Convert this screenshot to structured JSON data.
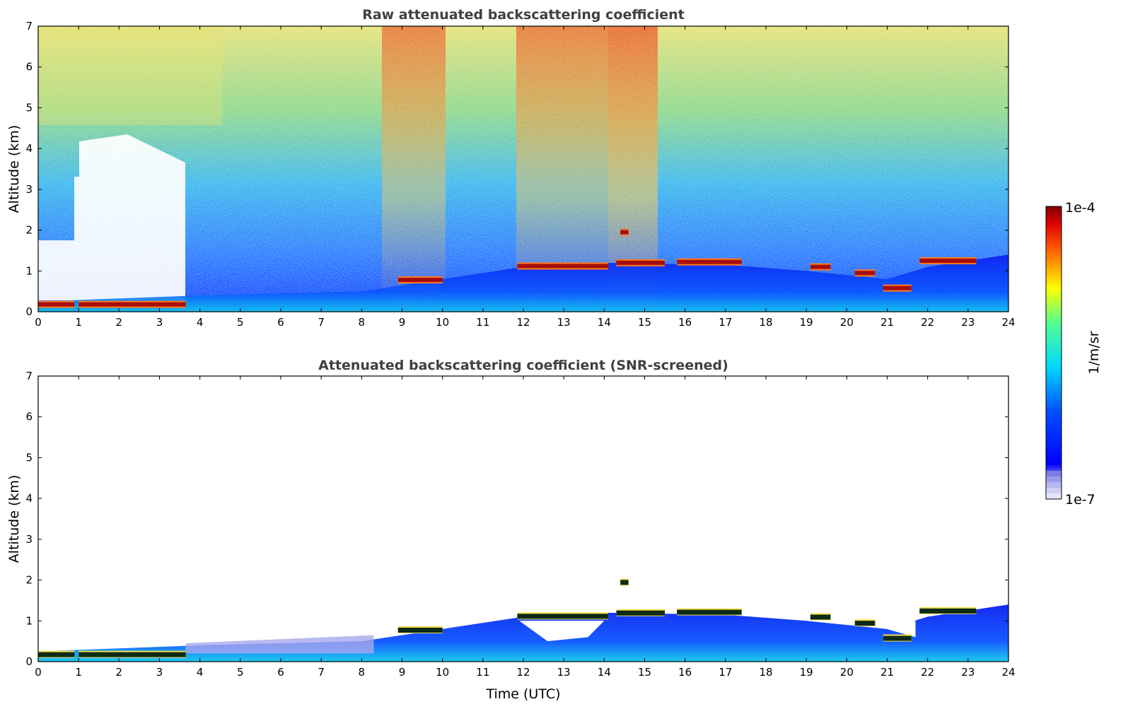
{
  "chart_data": [
    {
      "type": "heatmap",
      "title": "Raw attenuated backscattering coefficient",
      "xlabel": "",
      "ylabel": "Altitude (km)",
      "xlim": [
        0,
        24
      ],
      "ylim": [
        0,
        7
      ],
      "xticks": [
        "0",
        "1",
        "2",
        "3",
        "4",
        "5",
        "6",
        "7",
        "8",
        "9",
        "10",
        "11",
        "12",
        "13",
        "14",
        "15",
        "16",
        "17",
        "18",
        "19",
        "20",
        "21",
        "22",
        "23",
        "24"
      ],
      "yticks": [
        "0",
        "1",
        "2",
        "3",
        "4",
        "5",
        "6",
        "7"
      ],
      "boundary_layer_top_km": [
        [
          0,
          0.25
        ],
        [
          4,
          0.4
        ],
        [
          8,
          0.5
        ],
        [
          10,
          0.8
        ],
        [
          12,
          1.1
        ],
        [
          14,
          1.2
        ],
        [
          17,
          1.15
        ],
        [
          19,
          1.0
        ],
        [
          21,
          0.8
        ],
        [
          22,
          1.1
        ],
        [
          24,
          1.4
        ]
      ],
      "cloud_layers": [
        {
          "t_start": 0.0,
          "t_end": 0.9,
          "alt_km": 0.18
        },
        {
          "t_start": 1.0,
          "t_end": 3.65,
          "alt_km": 0.18
        },
        {
          "t_start": 8.9,
          "t_end": 10.0,
          "alt_km": 0.78
        },
        {
          "t_start": 11.85,
          "t_end": 14.1,
          "alt_km": 1.12
        },
        {
          "t_start": 14.4,
          "t_end": 14.6,
          "alt_km": 1.95
        },
        {
          "t_start": 14.3,
          "t_end": 15.5,
          "alt_km": 1.2
        },
        {
          "t_start": 15.8,
          "t_end": 17.4,
          "alt_km": 1.22
        },
        {
          "t_start": 19.1,
          "t_end": 19.6,
          "alt_km": 1.1
        },
        {
          "t_start": 20.2,
          "t_end": 20.7,
          "alt_km": 0.95
        },
        {
          "t_start": 20.9,
          "t_end": 21.6,
          "alt_km": 0.58
        },
        {
          "t_start": 21.8,
          "t_end": 23.2,
          "alt_km": 1.25
        }
      ]
    },
    {
      "type": "heatmap",
      "title": "Attenuated backscattering coefficient (SNR-screened)",
      "xlabel": "Time (UTC)",
      "ylabel": "Altitude (km)",
      "xlim": [
        0,
        24
      ],
      "ylim": [
        0,
        7
      ],
      "xticks": [
        "0",
        "1",
        "2",
        "3",
        "4",
        "5",
        "6",
        "7",
        "8",
        "9",
        "10",
        "11",
        "12",
        "13",
        "14",
        "15",
        "16",
        "17",
        "18",
        "19",
        "20",
        "21",
        "22",
        "23",
        "24"
      ],
      "yticks": [
        "0",
        "1",
        "2",
        "3",
        "4",
        "5",
        "6",
        "7"
      ]
    }
  ],
  "colorbar": {
    "label": "1/m/sr",
    "max_label": "1e-4",
    "min_label": "1e-7",
    "scale": "log",
    "colormap": "jet"
  }
}
